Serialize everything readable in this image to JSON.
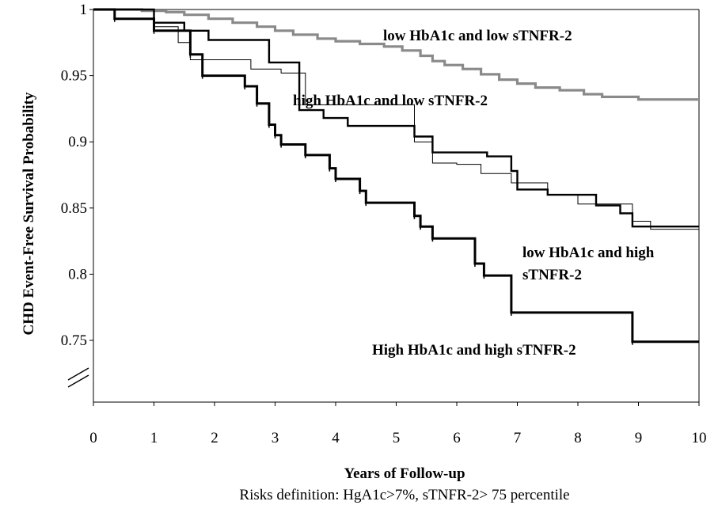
{
  "chart_data": {
    "type": "line",
    "title": "",
    "xlabel": "Years of Follow-up",
    "ylabel": "CHD Event-Free Survival Probability",
    "footnote": "Risks definition: HgA1c>7%,   sTNFR-2> 75 percentile",
    "xlim": [
      0,
      10
    ],
    "ylim": [
      0.75,
      1.0
    ],
    "x_ticks": [
      "0",
      "1",
      "2",
      "3",
      "4",
      "5",
      "6",
      "7",
      "8",
      "9",
      "10"
    ],
    "y_ticks": [
      "0.75",
      "0.8",
      "0.85",
      "0.9",
      "0.95",
      "1"
    ],
    "axis_break": true,
    "grid": false,
    "series": [
      {
        "name": "low HbA1c and low sTNFR-2",
        "color": "#8a8a8a",
        "steps": [
          [
            0,
            1.0
          ],
          [
            0.5,
            1.0
          ],
          [
            0.8,
            0.999
          ],
          [
            1.2,
            0.998
          ],
          [
            1.5,
            0.996
          ],
          [
            1.9,
            0.993
          ],
          [
            2.3,
            0.99
          ],
          [
            2.7,
            0.987
          ],
          [
            3.0,
            0.984
          ],
          [
            3.3,
            0.981
          ],
          [
            3.7,
            0.978
          ],
          [
            4.0,
            0.976
          ],
          [
            4.4,
            0.974
          ],
          [
            4.8,
            0.972
          ],
          [
            5.1,
            0.969
          ],
          [
            5.4,
            0.965
          ],
          [
            5.6,
            0.961
          ],
          [
            5.8,
            0.958
          ],
          [
            6.1,
            0.955
          ],
          [
            6.4,
            0.951
          ],
          [
            6.7,
            0.947
          ],
          [
            7.0,
            0.944
          ],
          [
            7.3,
            0.941
          ],
          [
            7.7,
            0.939
          ],
          [
            8.1,
            0.936
          ],
          [
            8.4,
            0.934
          ],
          [
            9.0,
            0.932
          ],
          [
            10.0,
            0.932
          ]
        ]
      },
      {
        "name": "high HbA1c and low sTNFR-2",
        "color": "#000000",
        "steps": [
          [
            0,
            1.0
          ],
          [
            0.5,
            1.0
          ],
          [
            1.0,
            0.987
          ],
          [
            1.4,
            0.975
          ],
          [
            1.6,
            0.962
          ],
          [
            2.6,
            0.955
          ],
          [
            3.1,
            0.952
          ],
          [
            3.5,
            0.928
          ],
          [
            5.3,
            0.9
          ],
          [
            5.6,
            0.884
          ],
          [
            6.0,
            0.883
          ],
          [
            6.4,
            0.876
          ],
          [
            6.9,
            0.869
          ],
          [
            7.5,
            0.86
          ],
          [
            8.0,
            0.853
          ],
          [
            8.9,
            0.84
          ],
          [
            9.2,
            0.834
          ],
          [
            10.0,
            0.834
          ]
        ]
      },
      {
        "name": "low HbA1c and high sTNFR-2",
        "color": "#000000",
        "steps": [
          [
            0,
            1.0
          ],
          [
            0.5,
            1.0
          ],
          [
            1.0,
            0.99
          ],
          [
            1.5,
            0.984
          ],
          [
            1.9,
            0.977
          ],
          [
            2.9,
            0.96
          ],
          [
            3.4,
            0.924
          ],
          [
            3.8,
            0.918
          ],
          [
            4.2,
            0.912
          ],
          [
            5.3,
            0.904
          ],
          [
            5.6,
            0.892
          ],
          [
            6.5,
            0.889
          ],
          [
            6.9,
            0.878
          ],
          [
            7.0,
            0.864
          ],
          [
            7.5,
            0.86
          ],
          [
            8.3,
            0.852
          ],
          [
            8.7,
            0.846
          ],
          [
            8.9,
            0.836
          ],
          [
            10.0,
            0.836
          ]
        ]
      },
      {
        "name": "High HbA1c and high sTNFR-2",
        "color": "#000000",
        "steps": [
          [
            0,
            1.0
          ],
          [
            0.35,
            0.993
          ],
          [
            1.0,
            0.984
          ],
          [
            1.6,
            0.966
          ],
          [
            1.8,
            0.95
          ],
          [
            2.5,
            0.942
          ],
          [
            2.7,
            0.929
          ],
          [
            2.9,
            0.913
          ],
          [
            3.0,
            0.905
          ],
          [
            3.1,
            0.898
          ],
          [
            3.5,
            0.89
          ],
          [
            3.9,
            0.88
          ],
          [
            4.0,
            0.872
          ],
          [
            4.4,
            0.863
          ],
          [
            4.5,
            0.854
          ],
          [
            5.3,
            0.844
          ],
          [
            5.4,
            0.836
          ],
          [
            5.6,
            0.827
          ],
          [
            6.3,
            0.808
          ],
          [
            6.45,
            0.799
          ],
          [
            6.9,
            0.771
          ],
          [
            8.9,
            0.749
          ],
          [
            10.0,
            0.749
          ]
        ]
      }
    ]
  }
}
